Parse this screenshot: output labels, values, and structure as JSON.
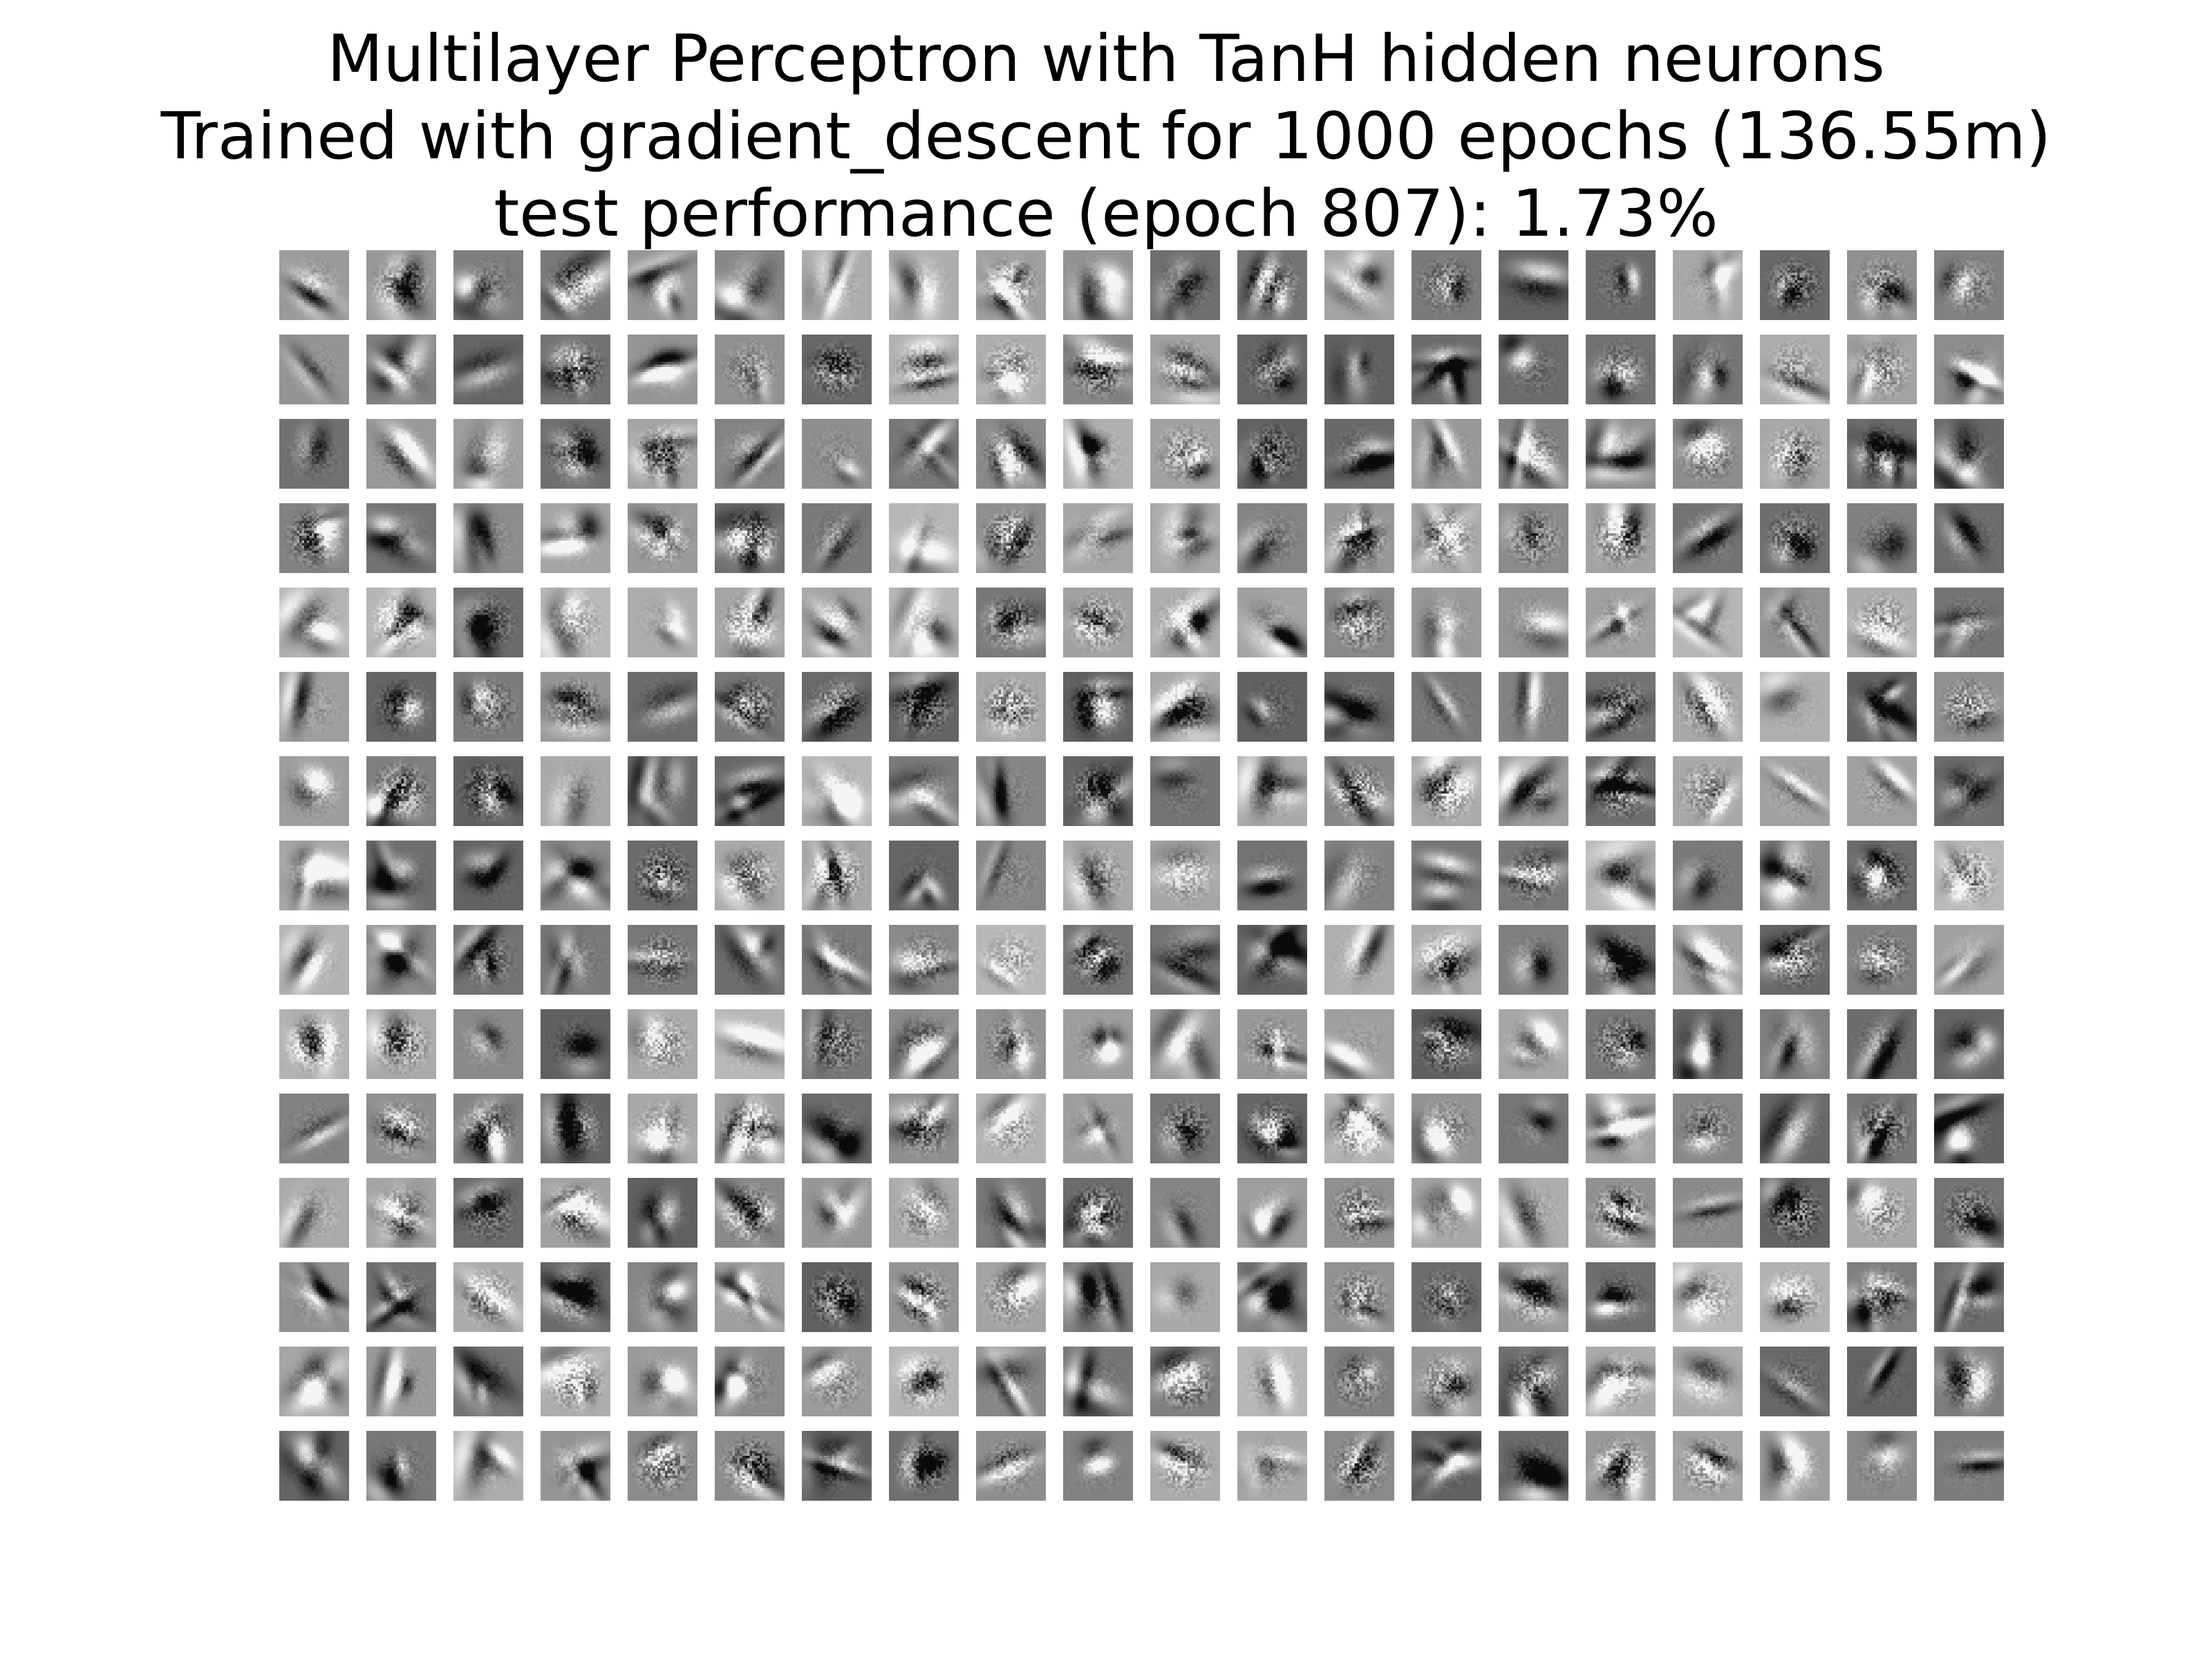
{
  "title": {
    "line1": "Multilayer Perceptron with TanH hidden neurons",
    "line2": "Trained with gradient_descent for 1000 epochs (136.55m)",
    "line3": "test performance (epoch 807): 1.73%"
  },
  "grid": {
    "rows": 15,
    "columns": 20,
    "tile_content": "grayscale hidden-neuron weight visualization",
    "colors": {
      "background": "#ffffff",
      "tile_dark": "#4a4a4a",
      "tile_mid": "#888888",
      "tile_light": "#c8c8c8"
    }
  }
}
